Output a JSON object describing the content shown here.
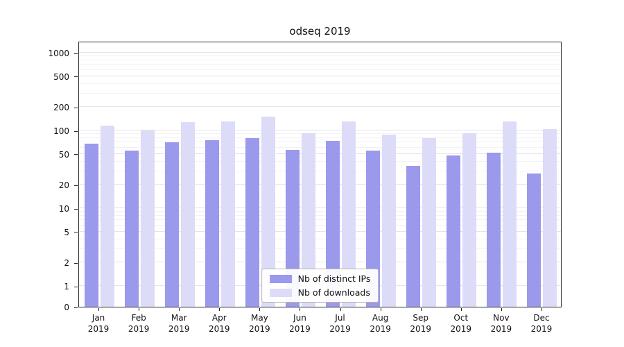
{
  "page": {
    "background": "#ffffff"
  },
  "chart_data": {
    "type": "bar",
    "title": "odseq 2019",
    "categories": [
      "Jan",
      "Feb",
      "Mar",
      "Apr",
      "May",
      "Jun",
      "Jul",
      "Aug",
      "Sep",
      "Oct",
      "Nov",
      "Dec"
    ],
    "year_label": "2019",
    "series": [
      {
        "name": "Nb of distinct IPs",
        "color": "#9a99ec",
        "values": [
          68,
          55,
          70,
          75,
          80,
          56,
          73,
          55,
          35,
          48,
          52,
          28
        ]
      },
      {
        "name": "Nb of downloads",
        "color": "#dcdcf8",
        "values": [
          115,
          100,
          128,
          132,
          150,
          92,
          130,
          88,
          80,
          92,
          130,
          104
        ]
      }
    ],
    "y_axis": {
      "scale": "log",
      "ticks": [
        0,
        1,
        2,
        5,
        10,
        20,
        50,
        100,
        200,
        500,
        1000
      ],
      "minor_gridlines": [
        3,
        4,
        6,
        7,
        8,
        9,
        30,
        40,
        60,
        70,
        80,
        90,
        300,
        400,
        600,
        700,
        800,
        900
      ]
    },
    "xlabel": "",
    "ylabel": "",
    "grid": true,
    "legend_position": "lower center"
  }
}
